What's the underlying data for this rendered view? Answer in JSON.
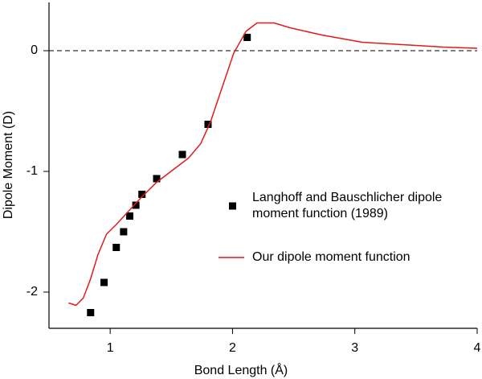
{
  "chart_data": {
    "type": "line",
    "x_label": "Bond Length (Å)",
    "y_label": "Dipole Moment (D)",
    "xlim": [
      0.5,
      4.0
    ],
    "ylim": [
      -2.3,
      0.4
    ],
    "xticks": [
      1,
      2,
      3,
      4
    ],
    "yticks": [
      0,
      -1,
      -2
    ],
    "hline": 0,
    "legend_position": "right",
    "series": [
      {
        "name": "Langhoff and Bauschlicher dipole moment function (1989)",
        "type": "scatter",
        "marker": "square",
        "color": "#000000",
        "x": [
          0.84,
          0.95,
          1.05,
          1.11,
          1.16,
          1.21,
          1.26,
          1.38,
          1.59,
          1.8,
          2.12
        ],
        "values": [
          -2.17,
          -1.92,
          -1.63,
          -1.5,
          -1.37,
          -1.28,
          -1.19,
          -1.06,
          -0.86,
          -0.61,
          0.11
        ]
      },
      {
        "name": "Our dipole moment function",
        "type": "line",
        "color": "#e31a1c",
        "x": [
          0.66,
          0.72,
          0.78,
          0.84,
          0.9,
          0.97,
          1.05,
          1.15,
          1.25,
          1.38,
          1.51,
          1.64,
          1.74,
          1.82,
          1.91,
          2.01,
          2.11,
          2.2,
          2.34,
          2.47,
          2.73,
          3.06,
          3.39,
          3.72,
          4.0
        ],
        "values": [
          -2.09,
          -2.11,
          -2.05,
          -1.89,
          -1.69,
          -1.52,
          -1.44,
          -1.33,
          -1.22,
          -1.09,
          -0.99,
          -0.89,
          -0.77,
          -0.59,
          -0.32,
          -0.02,
          0.16,
          0.23,
          0.23,
          0.19,
          0.13,
          0.07,
          0.05,
          0.03,
          0.02
        ]
      }
    ]
  }
}
